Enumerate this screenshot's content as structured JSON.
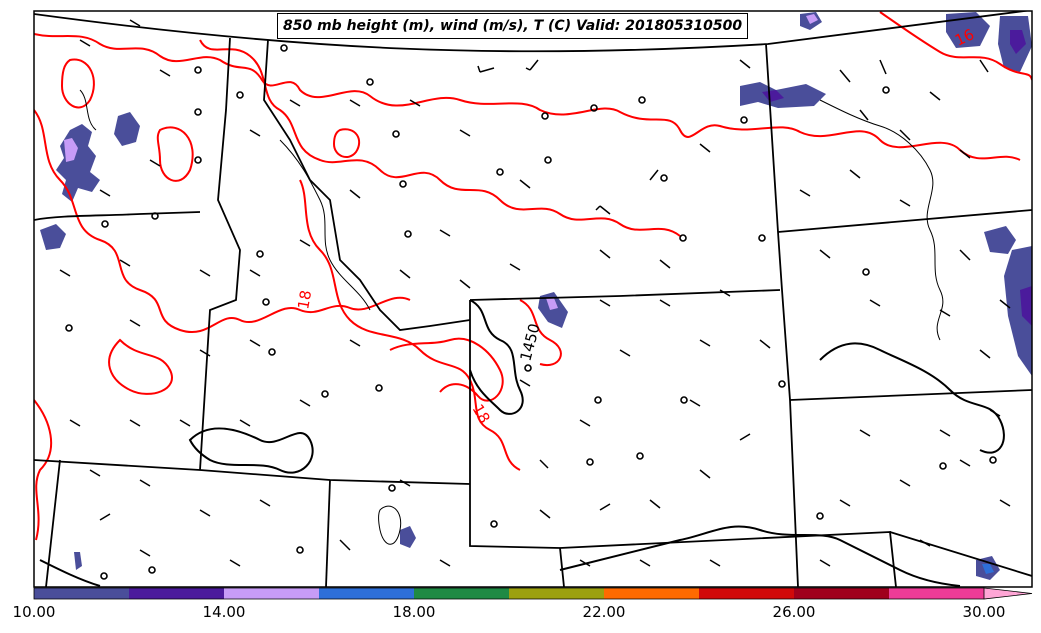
{
  "title": "850 mb height (m), wind (m/s), T (C) Valid: 201805310500",
  "contour_labels": {
    "temp_16": "16",
    "temp_18_west": "18",
    "temp_18_south": "18",
    "height_1450": "1450"
  },
  "colorbar": {
    "ticks": [
      "10.00",
      "14.00",
      "18.00",
      "22.00",
      "26.00",
      "30.00"
    ],
    "colors": [
      "#4a4e9a",
      "#4b1b9c",
      "#c79cf7",
      "#2e6fd8",
      "#1f8a44",
      "#9ca10f",
      "#ff6a00",
      "#d10a0a",
      "#a0001c",
      "#ee3b97",
      "#ffa6d6"
    ]
  },
  "colors": {
    "temperature_contour": "#ff0000",
    "height_contour": "#000000",
    "borders": "#000000"
  }
}
